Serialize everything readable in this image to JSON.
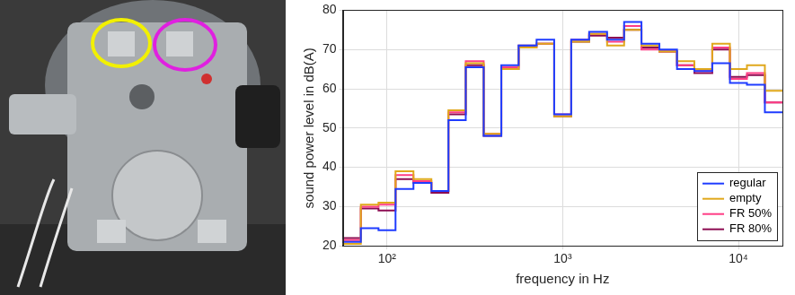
{
  "chart_data": {
    "type": "line",
    "line_style": "steps",
    "x_label": "frequency in Hz",
    "y_label": "sound power level in dB(A)",
    "log": "x",
    "grid": true,
    "legend": "lower right",
    "x": [
      63,
      80,
      100,
      125,
      160,
      200,
      250,
      315,
      400,
      500,
      630,
      800,
      1000,
      1250,
      1600,
      2000,
      2500,
      3150,
      4000,
      5000,
      6300,
      8000,
      10000,
      12500,
      16000
    ],
    "xlim": [
      56,
      17800
    ],
    "xticks": [
      {
        "value": 100,
        "label": "10²"
      },
      {
        "value": 1000,
        "label": "10³"
      },
      {
        "value": 10000,
        "label": "10⁴"
      }
    ],
    "ylim": [
      20,
      80
    ],
    "yticks": [
      20,
      30,
      40,
      50,
      60,
      70,
      80
    ],
    "series": [
      {
        "name": "regular",
        "color": "#1f3cff",
        "values": [
          21,
          24.5,
          24,
          34.5,
          36,
          34,
          52,
          65.5,
          48,
          66,
          71,
          72.5,
          53.5,
          72.5,
          74.5,
          72.5,
          77,
          71.5,
          70,
          65,
          64.5,
          66.5,
          61.5,
          61,
          54
        ]
      },
      {
        "name": "empty",
        "color": "#e0a81c",
        "values": [
          20.5,
          30.5,
          31,
          39,
          37,
          34,
          54.5,
          66.5,
          48.5,
          65,
          70.5,
          71.5,
          53,
          72,
          74,
          71,
          75,
          71,
          69.5,
          67,
          65,
          71.5,
          65,
          66,
          59.5
        ]
      },
      {
        "name": "FR 50%",
        "color": "#ff3d85",
        "values": [
          21.5,
          30,
          30.5,
          38,
          36.5,
          34,
          54,
          67,
          48.5,
          65.5,
          70.5,
          71.5,
          53.5,
          72.5,
          74,
          72,
          76,
          70,
          69.5,
          66,
          64.5,
          70.5,
          62.5,
          64,
          56.5
        ]
      },
      {
        "name": "FR 80%",
        "color": "#8c0c52",
        "values": [
          22,
          29.5,
          29,
          37,
          36,
          33.5,
          53.5,
          66,
          48,
          65,
          71,
          71.5,
          53,
          72,
          73.5,
          73,
          75,
          70.5,
          69.5,
          66,
          64,
          70,
          63,
          63.5,
          56.5
        ]
      }
    ]
  }
}
